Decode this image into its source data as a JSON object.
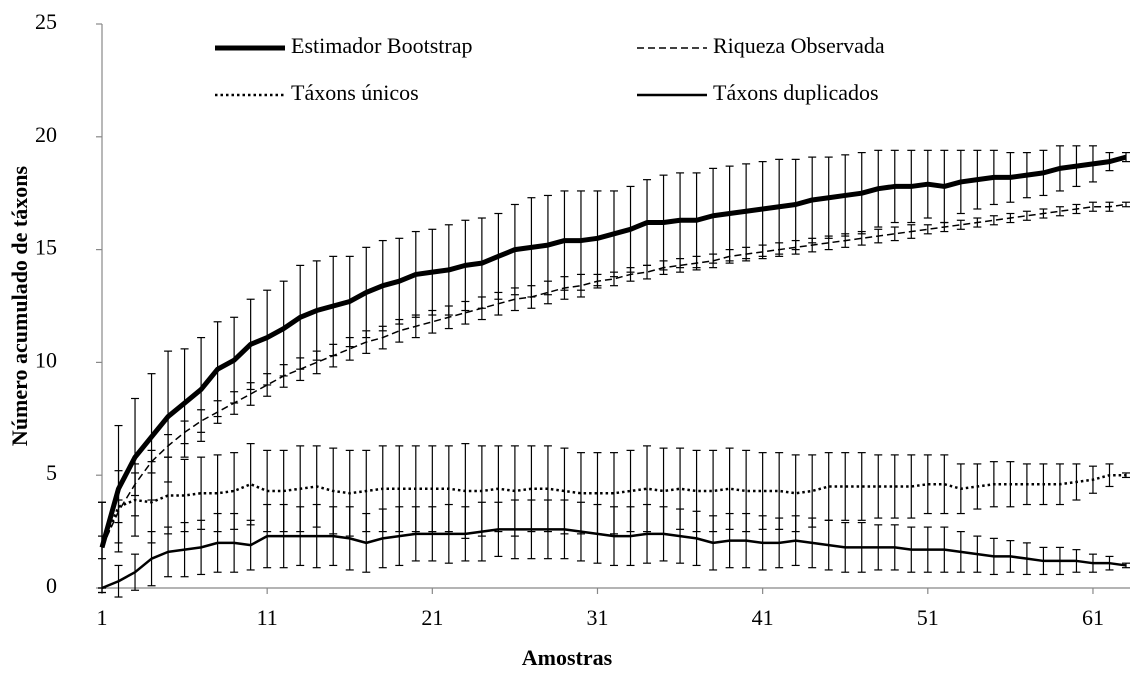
{
  "chart_data": {
    "type": "line",
    "xlabel": "Amostras",
    "ylabel": "Número acumulado de táxons",
    "x": [
      1,
      2,
      3,
      4,
      5,
      6,
      7,
      8,
      9,
      10,
      11,
      12,
      13,
      14,
      15,
      16,
      17,
      18,
      19,
      20,
      21,
      22,
      23,
      24,
      25,
      26,
      27,
      28,
      29,
      30,
      31,
      32,
      33,
      34,
      35,
      36,
      37,
      38,
      39,
      40,
      41,
      42,
      43,
      44,
      45,
      46,
      47,
      48,
      49,
      50,
      51,
      52,
      53,
      54,
      55,
      56,
      57,
      58,
      59,
      60,
      61,
      62,
      63
    ],
    "xlim": [
      1,
      63
    ],
    "xticks": [
      1,
      11,
      21,
      31,
      41,
      51,
      61
    ],
    "ylim": [
      0,
      25
    ],
    "yticks": [
      0,
      5,
      10,
      15,
      20,
      25
    ],
    "legend": "top",
    "series": [
      {
        "name": "Estimador Bootstrap",
        "color": "#000000",
        "line_style": "solid",
        "line_width": 5,
        "values": [
          1.8,
          4.4,
          5.8,
          6.7,
          7.6,
          8.2,
          8.8,
          9.7,
          10.1,
          10.8,
          11.1,
          11.5,
          12.0,
          12.3,
          12.5,
          12.7,
          13.1,
          13.4,
          13.6,
          13.9,
          14.0,
          14.1,
          14.3,
          14.4,
          14.7,
          15.0,
          15.1,
          15.2,
          15.4,
          15.4,
          15.5,
          15.7,
          15.9,
          16.2,
          16.2,
          16.3,
          16.3,
          16.5,
          16.6,
          16.7,
          16.8,
          16.9,
          17.0,
          17.2,
          17.3,
          17.4,
          17.5,
          17.7,
          17.8,
          17.8,
          17.9,
          17.8,
          18.0,
          18.1,
          18.2,
          18.2,
          18.3,
          18.4,
          18.6,
          18.7,
          18.8,
          18.9,
          19.1
        ],
        "errors": [
          2.0,
          2.8,
          2.6,
          2.8,
          2.9,
          2.4,
          2.3,
          2.1,
          1.9,
          2.0,
          2.1,
          2.1,
          2.3,
          2.2,
          2.2,
          2.0,
          2.0,
          2.0,
          1.9,
          1.9,
          1.9,
          2.0,
          2.0,
          2.0,
          1.9,
          2.0,
          2.2,
          2.2,
          2.2,
          2.2,
          2.1,
          1.9,
          1.9,
          1.9,
          2.1,
          2.1,
          2.1,
          2.1,
          2.1,
          2.1,
          2.1,
          2.1,
          2.0,
          1.9,
          1.8,
          1.8,
          1.8,
          1.7,
          1.6,
          1.6,
          1.5,
          1.6,
          1.4,
          1.3,
          1.2,
          1.1,
          1.0,
          1.0,
          1.0,
          0.9,
          0.8,
          0.4,
          0.2
        ]
      },
      {
        "name": "Riqueza Observada",
        "color": "#000000",
        "line_style": "dashed",
        "line_width": 1.5,
        "values": [
          1.8,
          3.4,
          4.6,
          5.6,
          6.3,
          6.9,
          7.4,
          7.8,
          8.2,
          8.6,
          9.0,
          9.4,
          9.7,
          10.0,
          10.3,
          10.6,
          10.9,
          11.1,
          11.4,
          11.6,
          11.8,
          12.0,
          12.2,
          12.4,
          12.6,
          12.8,
          12.9,
          13.1,
          13.3,
          13.4,
          13.6,
          13.7,
          13.9,
          14.0,
          14.2,
          14.3,
          14.4,
          14.5,
          14.7,
          14.8,
          14.9,
          15.0,
          15.1,
          15.2,
          15.3,
          15.4,
          15.5,
          15.6,
          15.7,
          15.8,
          15.9,
          16.0,
          16.1,
          16.2,
          16.3,
          16.4,
          16.5,
          16.6,
          16.7,
          16.8,
          16.9,
          16.9,
          17.0
        ],
        "errors": [
          0.5,
          0.5,
          0.5,
          0.5,
          0.5,
          0.5,
          0.5,
          0.5,
          0.5,
          0.5,
          0.5,
          0.5,
          0.5,
          0.5,
          0.5,
          0.5,
          0.5,
          0.5,
          0.5,
          0.5,
          0.5,
          0.5,
          0.5,
          0.5,
          0.5,
          0.5,
          0.5,
          0.5,
          0.5,
          0.5,
          0.3,
          0.3,
          0.3,
          0.3,
          0.3,
          0.3,
          0.3,
          0.3,
          0.3,
          0.3,
          0.3,
          0.3,
          0.3,
          0.3,
          0.3,
          0.3,
          0.3,
          0.3,
          0.3,
          0.3,
          0.2,
          0.2,
          0.2,
          0.2,
          0.2,
          0.2,
          0.2,
          0.2,
          0.2,
          0.2,
          0.2,
          0.2,
          0.1
        ]
      },
      {
        "name": "Táxons únicos",
        "color": "#000000",
        "line_style": "dotted",
        "line_width": 2.5,
        "values": [
          1.8,
          3.6,
          3.9,
          3.8,
          4.1,
          4.1,
          4.2,
          4.2,
          4.3,
          4.6,
          4.3,
          4.3,
          4.4,
          4.5,
          4.3,
          4.2,
          4.3,
          4.4,
          4.4,
          4.4,
          4.4,
          4.4,
          4.3,
          4.3,
          4.4,
          4.3,
          4.4,
          4.4,
          4.3,
          4.2,
          4.2,
          4.2,
          4.3,
          4.4,
          4.3,
          4.4,
          4.3,
          4.3,
          4.4,
          4.3,
          4.3,
          4.3,
          4.2,
          4.3,
          4.5,
          4.5,
          4.5,
          4.5,
          4.5,
          4.5,
          4.6,
          4.6,
          4.4,
          4.5,
          4.6,
          4.6,
          4.6,
          4.6,
          4.6,
          4.7,
          4.8,
          5.0,
          5.0
        ],
        "errors": [
          2.0,
          1.6,
          1.6,
          1.8,
          1.7,
          1.6,
          1.6,
          1.7,
          1.7,
          1.8,
          1.8,
          1.8,
          1.9,
          1.8,
          1.9,
          1.9,
          1.8,
          1.9,
          1.9,
          1.9,
          1.9,
          1.9,
          2.1,
          2.0,
          1.9,
          2.0,
          1.9,
          1.9,
          1.9,
          1.8,
          1.8,
          1.8,
          1.8,
          1.9,
          1.9,
          1.8,
          1.8,
          1.8,
          1.8,
          1.8,
          1.7,
          1.7,
          1.7,
          1.6,
          1.5,
          1.5,
          1.5,
          1.4,
          1.4,
          1.4,
          1.3,
          1.3,
          1.1,
          1.0,
          1.0,
          1.0,
          0.9,
          0.9,
          0.9,
          0.8,
          0.6,
          0.5,
          0.1
        ]
      },
      {
        "name": "Táxons duplicados",
        "color": "#000000",
        "line_style": "solid",
        "line_width": 2.5,
        "values": [
          0,
          0.3,
          0.7,
          1.3,
          1.6,
          1.7,
          1.8,
          2.0,
          2.0,
          1.9,
          2.3,
          2.3,
          2.3,
          2.3,
          2.3,
          2.2,
          2.0,
          2.2,
          2.3,
          2.4,
          2.4,
          2.4,
          2.4,
          2.5,
          2.6,
          2.6,
          2.6,
          2.6,
          2.6,
          2.5,
          2.4,
          2.3,
          2.3,
          2.4,
          2.4,
          2.3,
          2.2,
          2.0,
          2.1,
          2.1,
          2.0,
          2.0,
          2.1,
          2.0,
          1.9,
          1.8,
          1.8,
          1.8,
          1.8,
          1.7,
          1.7,
          1.7,
          1.6,
          1.5,
          1.4,
          1.4,
          1.3,
          1.2,
          1.2,
          1.2,
          1.1,
          1.1,
          1.0
        ],
        "errors": [
          0,
          0.7,
          0.8,
          1.2,
          1.1,
          1.2,
          1.2,
          1.3,
          1.3,
          1.1,
          1.4,
          1.4,
          1.3,
          1.4,
          1.3,
          1.4,
          1.3,
          1.3,
          1.3,
          1.2,
          1.2,
          1.3,
          1.2,
          1.3,
          1.2,
          1.3,
          1.3,
          1.3,
          1.3,
          1.3,
          1.3,
          1.3,
          1.3,
          1.3,
          1.2,
          1.2,
          1.2,
          1.2,
          1.2,
          1.2,
          1.2,
          1.1,
          1.1,
          1.1,
          1.1,
          1.1,
          1.1,
          1.0,
          1.0,
          1.0,
          1.0,
          1.0,
          0.9,
          0.8,
          0.8,
          0.7,
          0.7,
          0.6,
          0.6,
          0.5,
          0.4,
          0.3,
          0.1
        ]
      }
    ]
  }
}
